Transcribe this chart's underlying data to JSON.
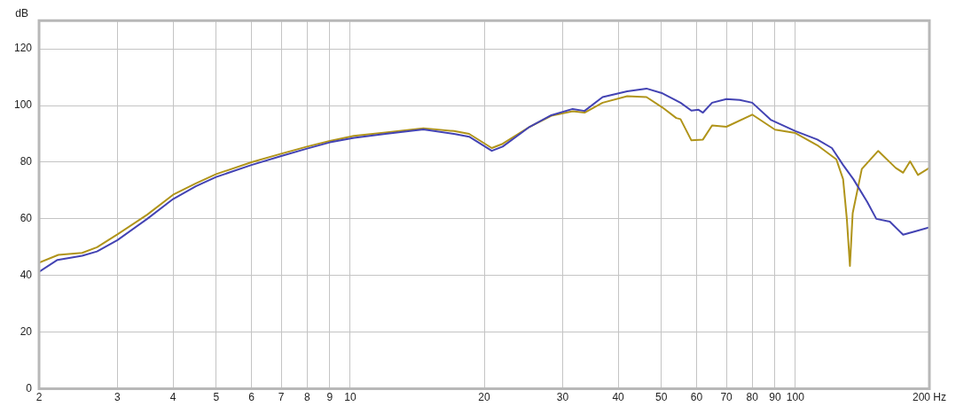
{
  "chart_data": {
    "type": "line",
    "ylabel": "dB",
    "log": "x",
    "grid": true,
    "legend": false,
    "marker": "none",
    "line_style": "solid",
    "xlim": [
      2,
      200
    ],
    "ylim": [
      0,
      130
    ],
    "xticks": [
      2,
      3,
      4,
      5,
      6,
      7,
      8,
      9,
      10,
      20,
      30,
      40,
      50,
      60,
      70,
      80,
      90,
      100,
      {
        "value": 200,
        "label": "200 Hz"
      }
    ],
    "yticks": [
      0,
      20,
      40,
      60,
      80,
      100,
      120
    ],
    "series": [
      {
        "color": "#4343b3",
        "x": [
          2,
          2.2,
          2.5,
          2.7,
          3,
          3.5,
          4,
          4.5,
          5,
          6,
          7,
          8,
          9,
          10.2,
          12,
          14.6,
          17.1,
          18.5,
          20.8,
          22,
          25.3,
          28.3,
          31.6,
          33.6,
          36.9,
          41.9,
          46.3,
          50.3,
          55.2,
          58.4,
          60.6,
          62,
          65,
          70,
          75,
          80,
          88,
          100,
          112,
          120.8,
          128,
          135,
          145,
          152,
          163,
          174.6,
          185,
          200
        ],
        "values": [
          41.3,
          45.5,
          47,
          48.5,
          52.5,
          60,
          67,
          71.5,
          74.8,
          79,
          82.2,
          84.8,
          87,
          88.6,
          90,
          91.6,
          90,
          89,
          84,
          85.5,
          92.5,
          96.6,
          98.8,
          98.1,
          103,
          105,
          106,
          104.3,
          101,
          98.2,
          98.5,
          97.5,
          101,
          102.3,
          102,
          101,
          95,
          91,
          88,
          85,
          79,
          74,
          66,
          60,
          59,
          54.4,
          55.5,
          57
        ]
      },
      {
        "color": "#b0941a",
        "x": [
          2,
          2.21,
          2.5,
          2.7,
          3,
          3.5,
          4,
          4.5,
          5,
          6,
          7,
          8,
          9,
          10.2,
          12,
          14.6,
          17.1,
          18.5,
          20.8,
          22,
          25.3,
          28.3,
          31.6,
          33.6,
          36.9,
          41.9,
          46.3,
          50.3,
          54,
          55.2,
          58.4,
          62,
          65,
          70,
          80,
          90,
          100,
          112,
          123.6,
          128,
          130.5,
          132.6,
          134.5,
          141,
          153.5,
          168,
          174.6,
          181,
          188.5,
          200
        ],
        "values": [
          44.5,
          47.3,
          48,
          50,
          54.5,
          61.5,
          68.5,
          72.5,
          75.8,
          80,
          83,
          85.5,
          87.5,
          89.3,
          90.5,
          92,
          91,
          90,
          85,
          86.5,
          92.5,
          96.4,
          98,
          97.5,
          101,
          103.3,
          103,
          99.3,
          95.6,
          95.2,
          87.7,
          88,
          93,
          92.5,
          96.8,
          91.5,
          90.3,
          86,
          81,
          74,
          60,
          43.4,
          62,
          77.6,
          84,
          78,
          76.3,
          80.3,
          75.5,
          78
        ]
      }
    ]
  }
}
